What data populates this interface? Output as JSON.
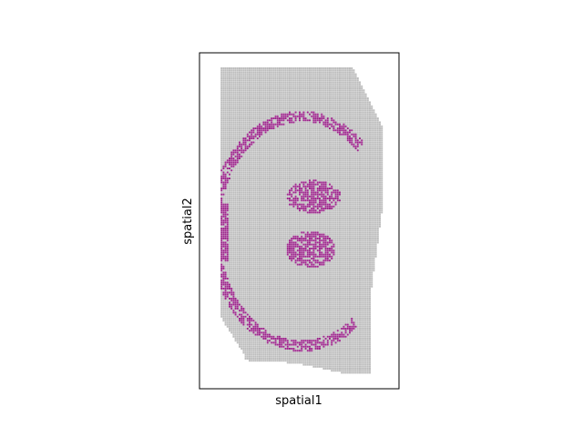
{
  "chart_data": {
    "type": "scatter",
    "title": "",
    "xlabel": "spatial1",
    "ylabel": "spatial2",
    "xticks": [],
    "yticks": [],
    "grid": false,
    "legend": "none",
    "colors": {
      "background_spot": "#bdbdbd",
      "background_spot_edge": "#9e9e9e",
      "highlight_spot": "#9c2a8c",
      "highlight_spot_edge": "#6e1463",
      "frame": "#000000"
    },
    "series": [
      {
        "values_role": "tissue spots (uncategorized)",
        "region_outline": [
          [
            240,
            -75
          ],
          [
            240,
            -57
          ],
          [
            270,
            -45
          ],
          [
            320,
            -45
          ],
          [
            380,
            -60
          ],
          [
            420,
            -140
          ],
          [
            420,
            -220
          ],
          [
            405,
            -330
          ],
          [
            405,
            -375
          ],
          [
            405,
            -410
          ],
          [
            380,
            -410
          ],
          [
            325,
            -398
          ],
          [
            268,
            -395
          ],
          [
            268,
            -390
          ],
          [
            240,
            -345
          ],
          [
            240,
            -75
          ]
        ]
      },
      {
        "values_role": "highlighted cluster spots",
        "regions": [
          {
            "kind": "outer_arc",
            "center": [
              330,
              -253
            ],
            "radii_x": [
              90,
              102
            ],
            "radii_y": [
              120,
              132
            ],
            "angles_deg": [
              55,
              300
            ]
          },
          {
            "kind": "blob",
            "center": [
              343,
              -215
            ],
            "rx": 30,
            "ry": 18
          },
          {
            "kind": "blob",
            "center": [
              340,
              -273
            ],
            "rx": 27,
            "ry": 20
          },
          {
            "kind": "wedge",
            "polygon": [
              [
                228,
                -222
              ],
              [
                250,
                -222
              ],
              [
                250,
                -286
              ],
              [
                228,
                -286
              ]
            ]
          }
        ]
      }
    ]
  }
}
